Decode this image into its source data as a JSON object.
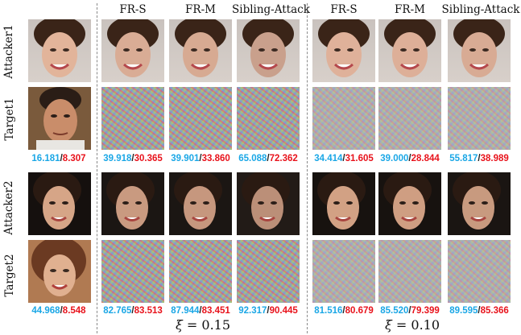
{
  "columns": {
    "fr_s": "FR-S",
    "fr_m": "FR-M",
    "sibling": "Sibling-Attack"
  },
  "rows": {
    "attacker1": "Attacker1",
    "target1": "Target1",
    "attacker2": "Attacker2",
    "target2": "Target2"
  },
  "scores": {
    "row1": {
      "target": {
        "blue": "16.181",
        "red": "8.307"
      },
      "g1": [
        {
          "blue": "39.918",
          "red": "30.365"
        },
        {
          "blue": "39.901",
          "red": "33.860"
        },
        {
          "blue": "65.088",
          "red": "72.362"
        }
      ],
      "g2": [
        {
          "blue": "34.414",
          "red": "31.605"
        },
        {
          "blue": "39.000",
          "red": "28.844"
        },
        {
          "blue": "55.817",
          "red": "38.989"
        }
      ]
    },
    "row2": {
      "target": {
        "blue": "44.968",
        "red": "8.548"
      },
      "g1": [
        {
          "blue": "82.765",
          "red": "83.513"
        },
        {
          "blue": "87.944",
          "red": "83.451"
        },
        {
          "blue": "92.317",
          "red": "90.445"
        }
      ],
      "g2": [
        {
          "blue": "81.516",
          "red": "80.679"
        },
        {
          "blue": "85.520",
          "red": "79.399"
        },
        {
          "blue": "89.595",
          "red": "85.366"
        }
      ]
    }
  },
  "xi": {
    "g1_symbol": "ξ",
    "g1_value": "= 0.15",
    "g2_symbol": "ξ",
    "g2_value": "= 0.10"
  },
  "colors": {
    "blue": "#1aa7e6",
    "red": "#e8121b"
  }
}
